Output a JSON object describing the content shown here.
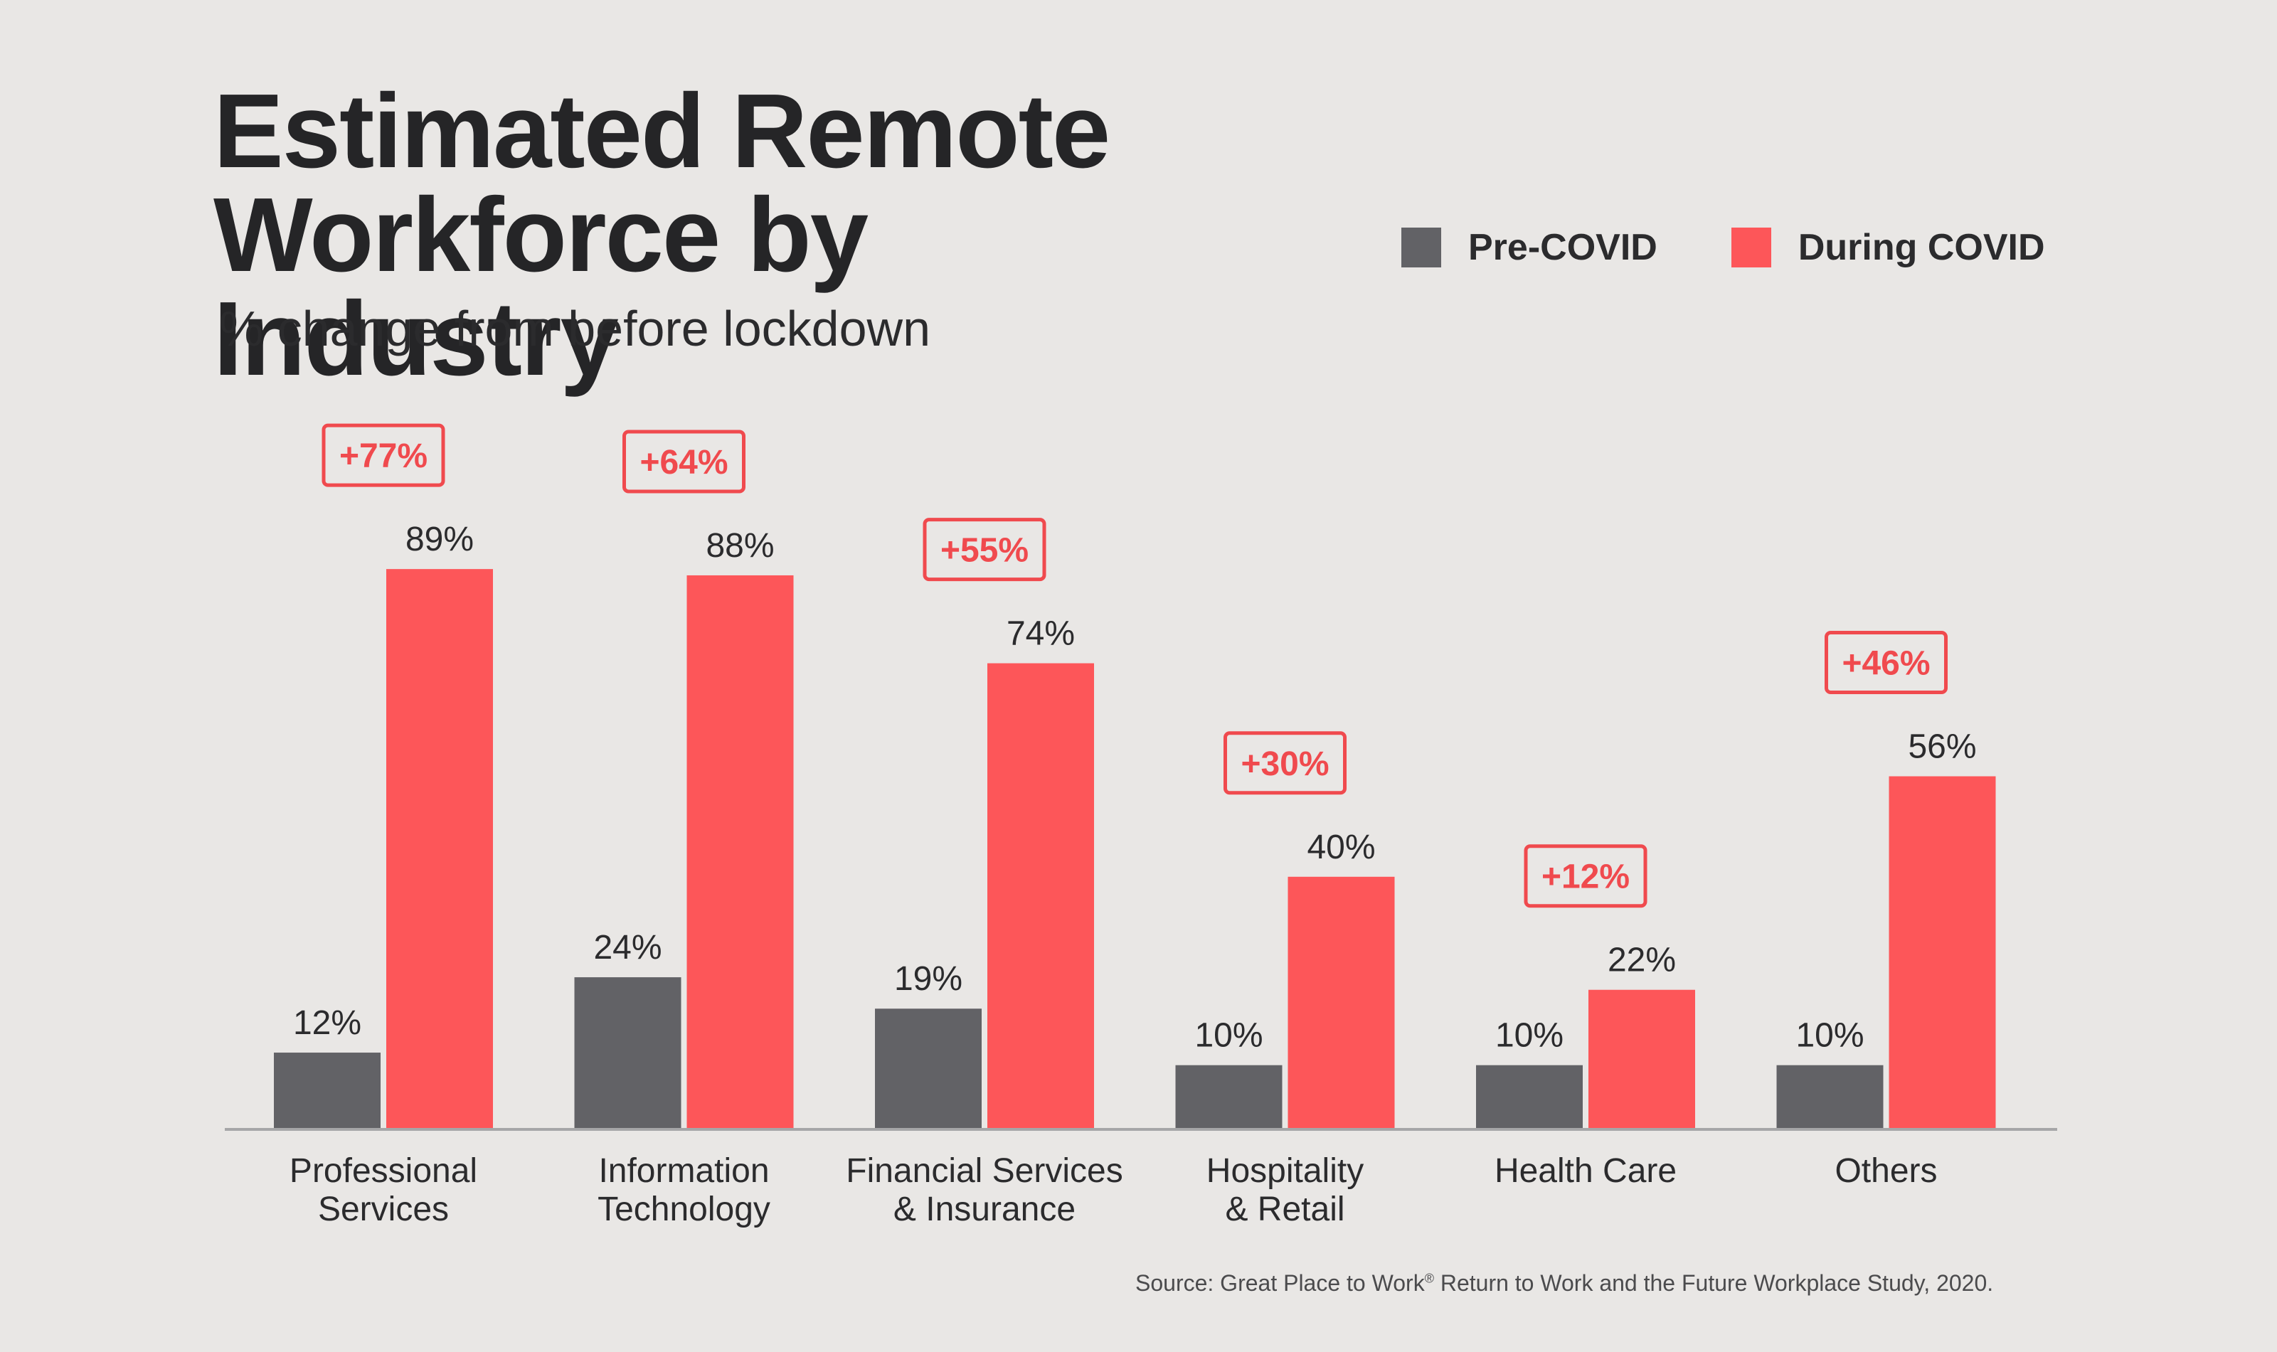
{
  "header": {
    "title_line1": "Estimated Remote",
    "title_line2": "Workforce by Industry",
    "subtitle": "% change from before lockdown"
  },
  "legend": {
    "pre_label": "Pre-COVID",
    "during_label": "During COVID"
  },
  "footer": {
    "source_prefix": "Source: Great Place to Work",
    "source_mark": "®",
    "source_suffix": " Return to Work and the Future Workplace Study, 2020."
  },
  "colors": {
    "pre": "#626266",
    "during": "#fd5659",
    "change": "#f04a4e",
    "axis": "#a6a6a8",
    "text": "#2b2b2d"
  },
  "chart_data": {
    "type": "bar",
    "title": "Estimated Remote Workforce by Industry",
    "subtitle": "% change from before lockdown",
    "categories": [
      [
        "Professional",
        "Services"
      ],
      [
        "Information",
        "Technology"
      ],
      [
        "Financial Services",
        "& Insurance"
      ],
      [
        "Hospitality",
        "& Retail"
      ],
      [
        "Health Care"
      ],
      [
        "Others"
      ]
    ],
    "series": [
      {
        "name": "Pre-COVID",
        "values": [
          12,
          24,
          19,
          10,
          10,
          10
        ]
      },
      {
        "name": "During COVID",
        "values": [
          89,
          88,
          74,
          40,
          22,
          56
        ]
      }
    ],
    "value_labels": {
      "Pre-COVID": [
        "12%",
        "24%",
        "19%",
        "10%",
        "10%",
        "10%"
      ],
      "During COVID": [
        "89%",
        "88%",
        "74%",
        "40%",
        "22%",
        "56%"
      ]
    },
    "change_labels": [
      "+77%",
      "+64%",
      "+55%",
      "+30%",
      "+12%",
      "+46%"
    ],
    "ylim": [
      0,
      100
    ],
    "grid": false,
    "legend_position": "top-right"
  }
}
